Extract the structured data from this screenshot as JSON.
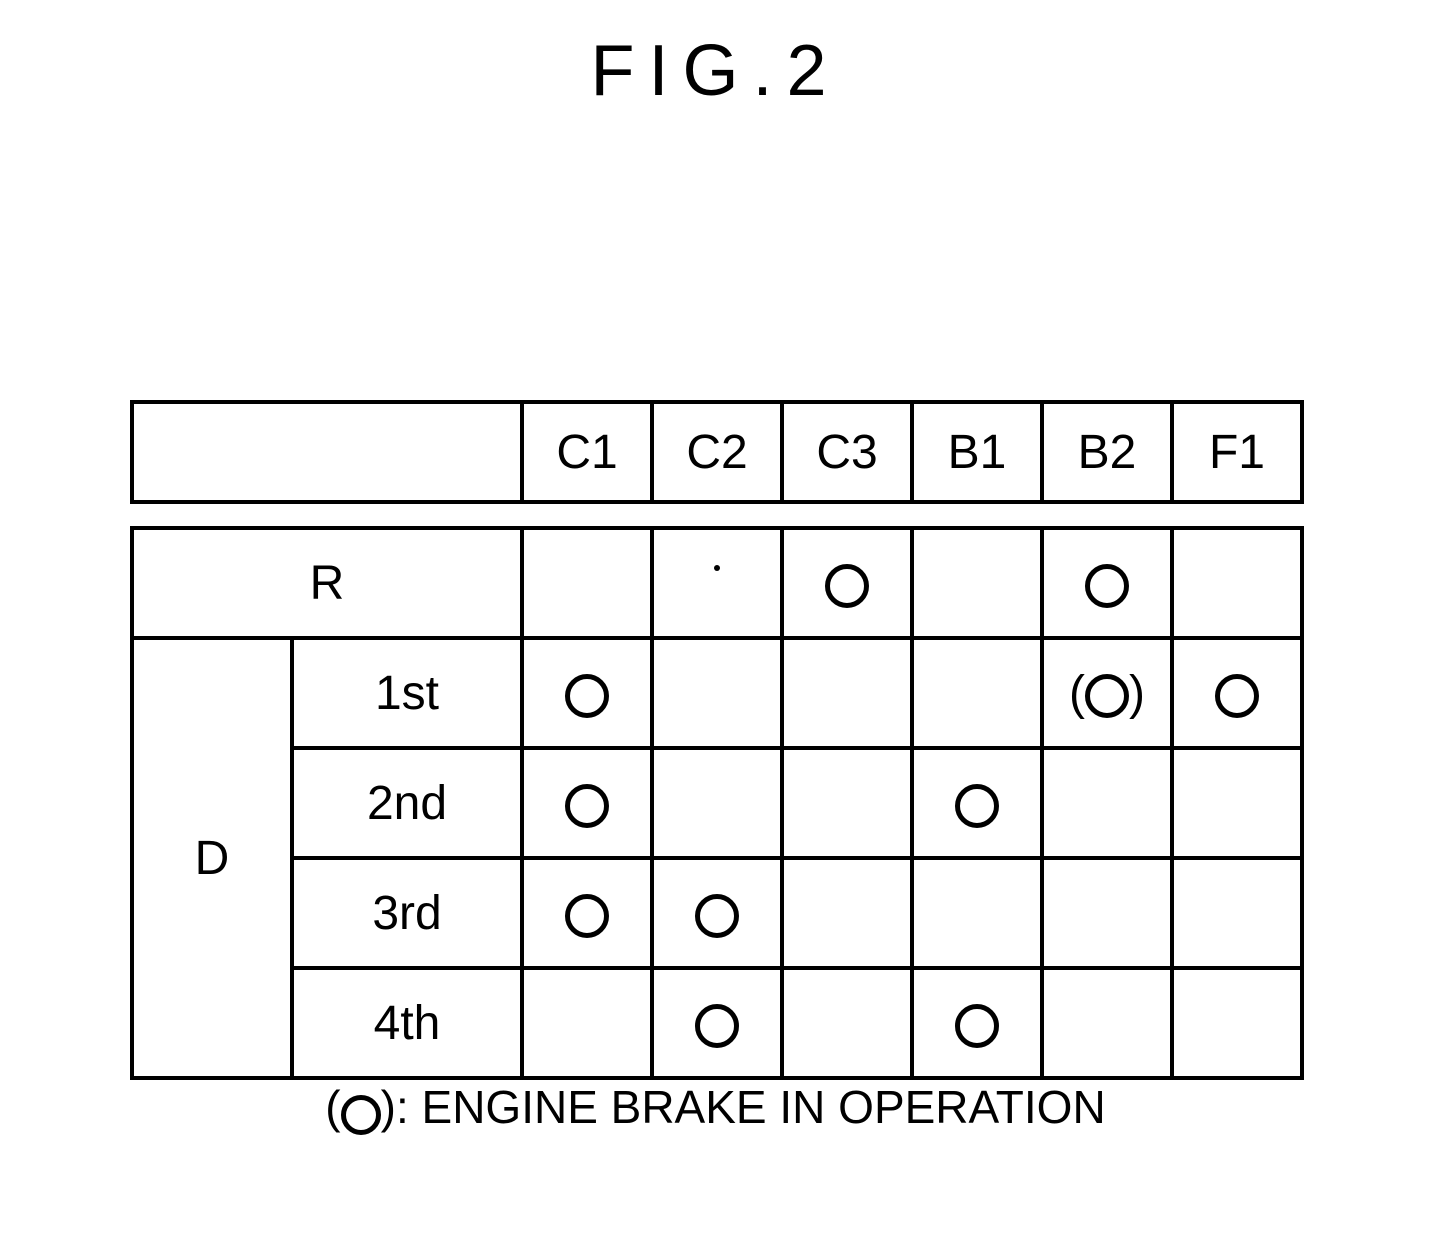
{
  "title": "FIG.2",
  "table": {
    "columns": [
      "C1",
      "C2",
      "C3",
      "B1",
      "B2",
      "F1"
    ],
    "row_R_label": "R",
    "row_D_label": "D",
    "gears": [
      "1st",
      "2nd",
      "3rd",
      "4th"
    ],
    "mark_on": "circle",
    "mark_paren": "paren-circle",
    "cells": {
      "R": [
        "",
        "",
        "on",
        "",
        "on",
        ""
      ],
      "1st": [
        "on",
        "",
        "",
        "",
        "paren",
        "on"
      ],
      "2nd": [
        "on",
        "",
        "",
        "on",
        "",
        ""
      ],
      "3rd": [
        "on",
        "on",
        "",
        "",
        "",
        ""
      ],
      "4th": [
        "",
        "on",
        "",
        "on",
        "",
        ""
      ]
    }
  },
  "caption_text": ": ENGINE BRAKE IN OPERATION",
  "colors": {
    "border": "#000000",
    "bg": "#ffffff"
  }
}
